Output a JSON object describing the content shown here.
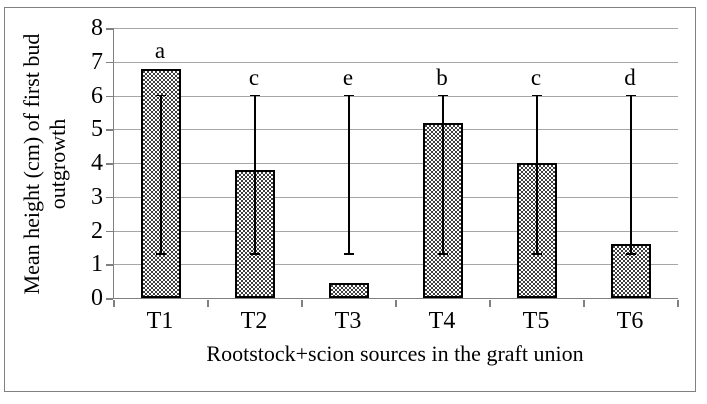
{
  "chart_data": {
    "type": "bar",
    "title": "",
    "xlabel": "Rootstock+scion sources in the graft union",
    "ylabel": "Mean height (cm) of first bud outgrowth",
    "ylabel_lines": [
      "Mean height (cm) of first bud",
      "outgrowth"
    ],
    "categories": [
      "T1",
      "T2",
      "T3",
      "T4",
      "T5",
      "T6"
    ],
    "values": [
      6.8,
      3.8,
      0.45,
      5.2,
      4.0,
      1.6
    ],
    "sig_letters": [
      "a",
      "c",
      "e",
      "b",
      "c",
      "d"
    ],
    "error_bar": {
      "top_value": 6.0,
      "bottom_value": 1.3
    },
    "ylim": [
      0,
      8
    ],
    "yticks": [
      0,
      1,
      2,
      3,
      4,
      5,
      6,
      7,
      8
    ],
    "grid": true,
    "legend": "none",
    "bar_fill_pattern": "dense-black-dots-on-white",
    "colors": {
      "bar_border": "#000000",
      "bar_dot": "#000000",
      "bar_background": "#ffffff",
      "gridline": "#a6a6a6",
      "axis": "#808080",
      "figure_border": "#808080",
      "text": "#000000",
      "background": "#ffffff"
    }
  }
}
